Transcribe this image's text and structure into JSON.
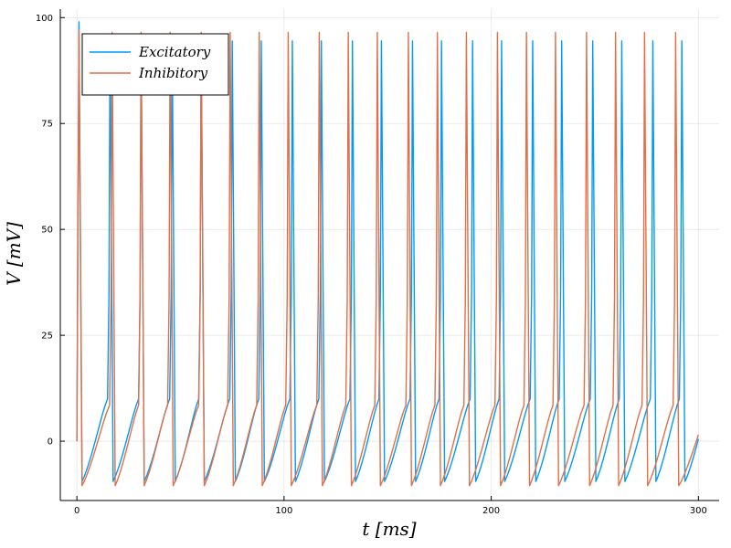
{
  "chart_data": {
    "type": "line",
    "title": "",
    "xlabel": "t [ms]",
    "ylabel": "V [mV]",
    "xlim": [
      -8,
      310
    ],
    "ylim": [
      -14,
      102
    ],
    "xticks": [
      0,
      100,
      200,
      300
    ],
    "yticks": [
      0,
      25,
      50,
      75,
      100
    ],
    "xtick_labels": [
      "0",
      "100",
      "200",
      "300"
    ],
    "ytick_labels": [
      "0",
      "25",
      "50",
      "75",
      "100"
    ],
    "grid": true,
    "legend_position": "top-left",
    "series": [
      {
        "name": "Excitatory",
        "color": "#009AFA",
        "initial_peak": 99,
        "spike_peak": 94.5,
        "reset_min": -9.5,
        "pre_spike_level": 10,
        "spike_times": [
          1,
          16,
          31,
          46,
          60,
          75,
          89,
          104,
          118,
          133,
          147,
          162,
          176,
          191,
          205,
          220,
          234,
          249,
          263,
          278,
          292
        ]
      },
      {
        "name": "Inhibitory",
        "color": "#E26F46",
        "initial_peak": 97,
        "spike_peak": 96.5,
        "reset_min": -10.5,
        "pre_spike_level": 8.5,
        "spike_times": [
          1,
          17,
          31,
          45,
          60,
          74,
          88,
          102,
          117,
          131,
          145,
          160,
          174,
          188,
          203,
          217,
          231,
          246,
          260,
          274,
          289
        ]
      }
    ],
    "t_end": 300,
    "end_values": [
      0.5,
      1.5
    ]
  }
}
